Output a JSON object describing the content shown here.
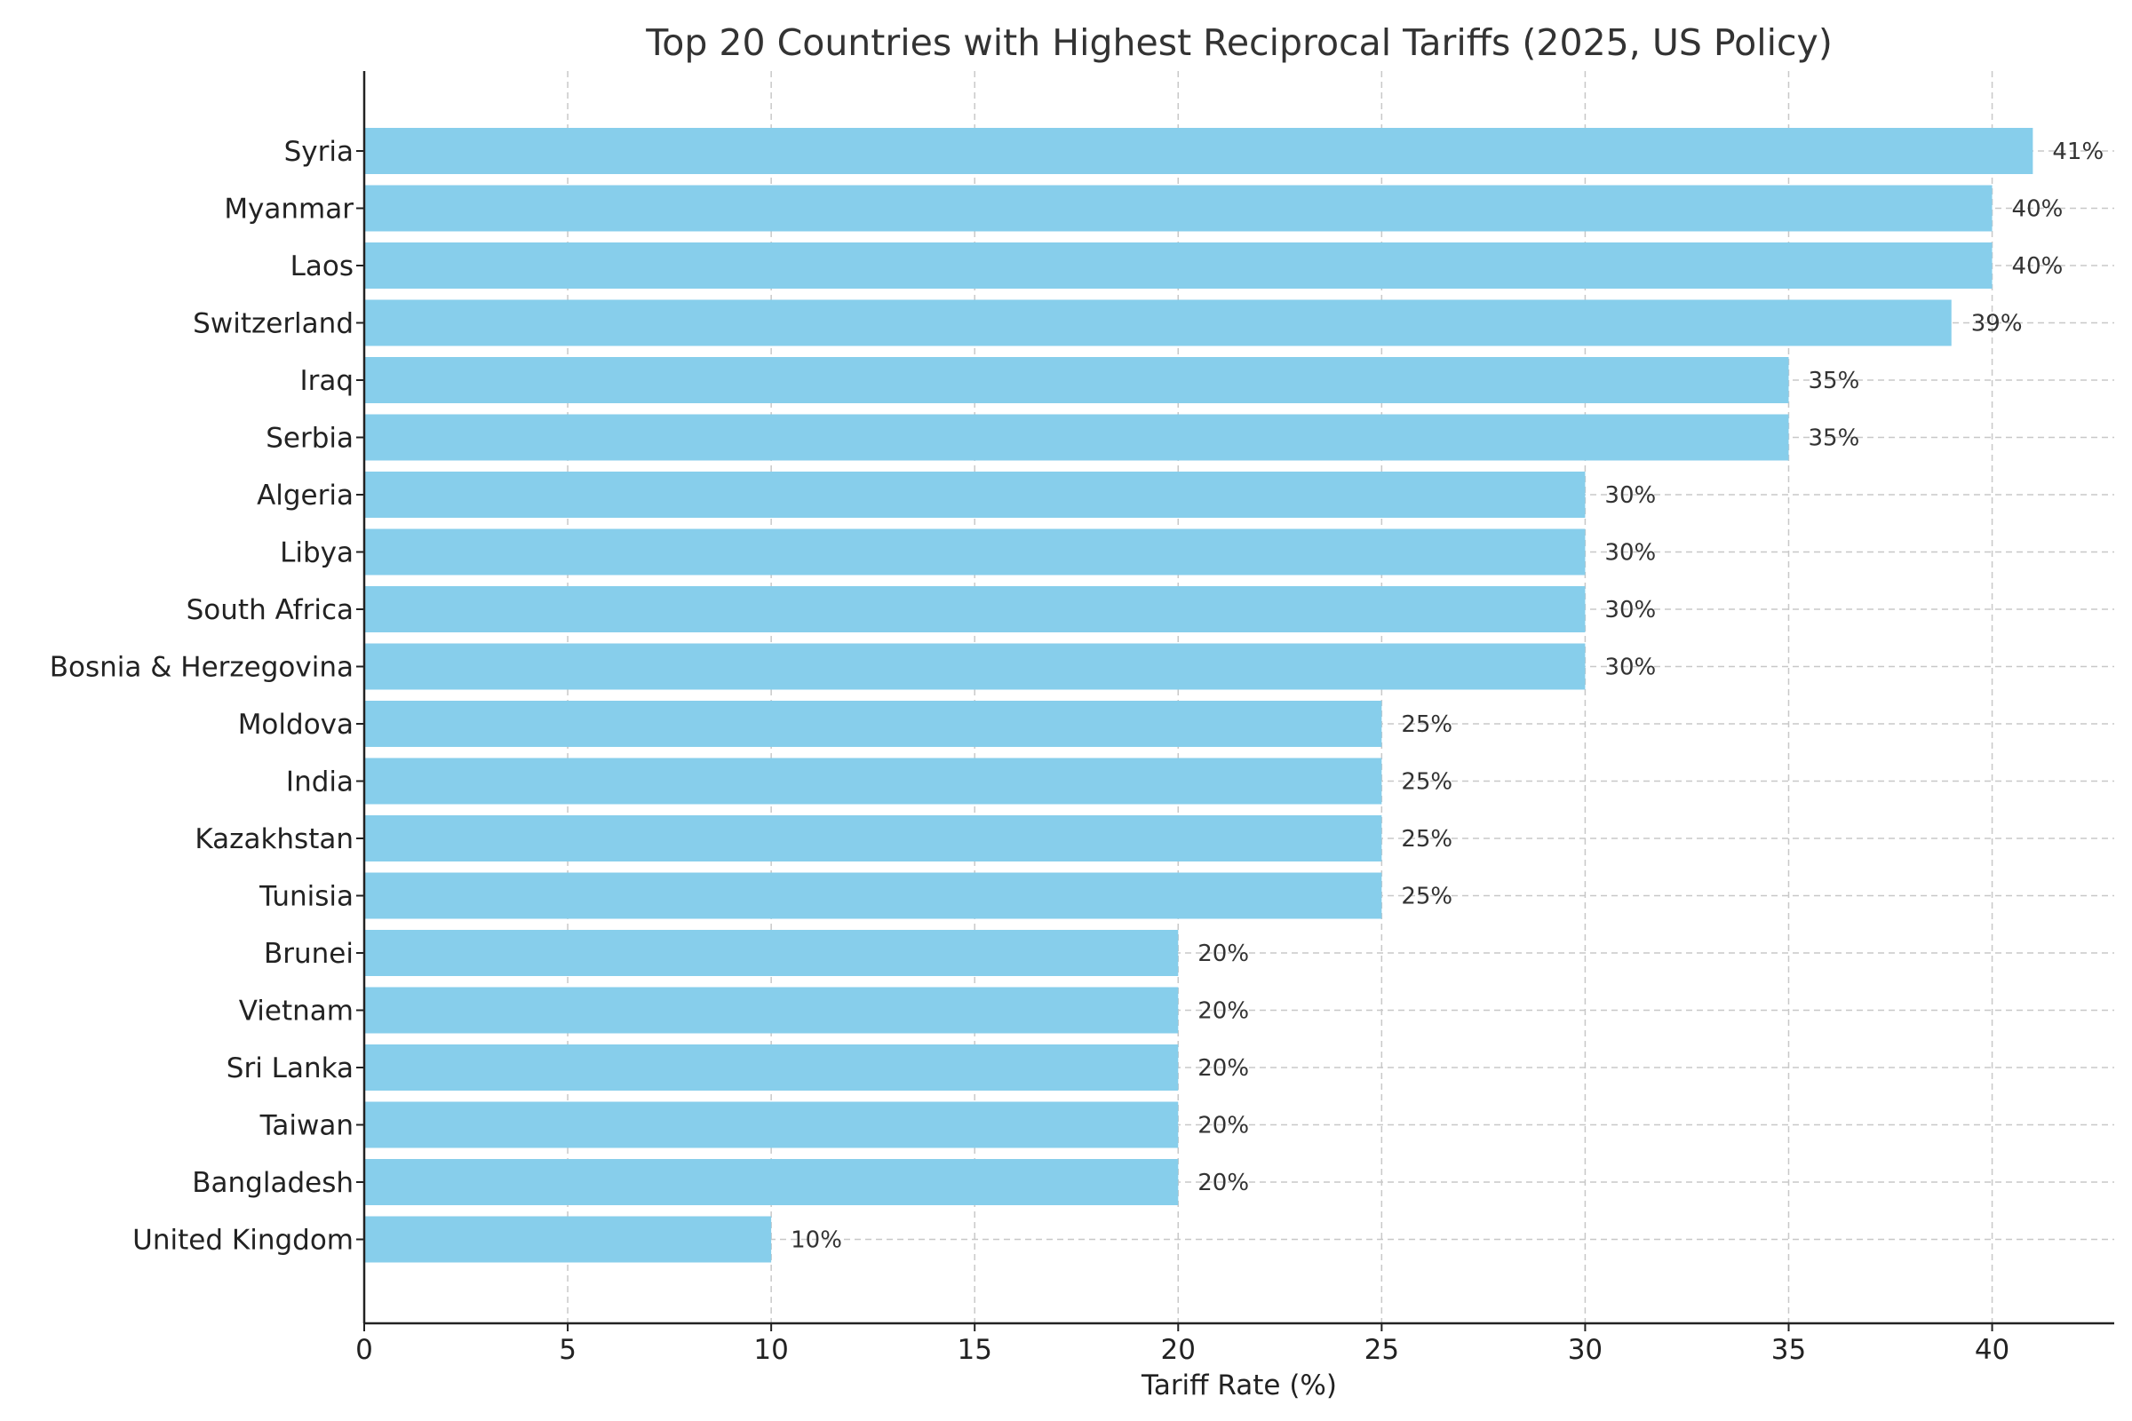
{
  "chart_data": {
    "type": "bar",
    "orientation": "horizontal",
    "title": "Top 20 Countries with Highest Reciprocal Tariffs (2025, US Policy)",
    "xlabel": "Tariff Rate (%)",
    "ylabel": "",
    "xlim": [
      0,
      43
    ],
    "xticks": [
      0,
      5,
      10,
      15,
      20,
      25,
      30,
      35,
      40
    ],
    "grid": true,
    "bar_color": "#87ceeb",
    "categories": [
      "Syria",
      "Myanmar",
      "Laos",
      "Switzerland",
      "Iraq",
      "Serbia",
      "Algeria",
      "Libya",
      "South Africa",
      "Bosnia & Herzegovina",
      "Moldova",
      "India",
      "Kazakhstan",
      "Tunisia",
      "Brunei",
      "Vietnam",
      "Sri Lanka",
      "Taiwan",
      "Bangladesh",
      "United Kingdom"
    ],
    "values": [
      41,
      40,
      40,
      39,
      35,
      35,
      30,
      30,
      30,
      30,
      25,
      25,
      25,
      25,
      20,
      20,
      20,
      20,
      20,
      10
    ],
    "data_labels": [
      "41%",
      "40%",
      "40%",
      "39%",
      "35%",
      "35%",
      "30%",
      "30%",
      "30%",
      "30%",
      "25%",
      "25%",
      "25%",
      "25%",
      "20%",
      "20%",
      "20%",
      "20%",
      "20%",
      "10%"
    ]
  }
}
